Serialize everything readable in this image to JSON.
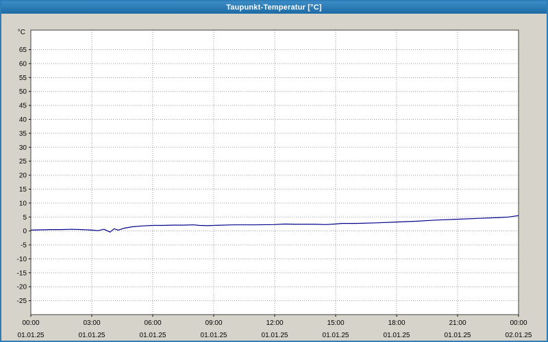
{
  "window": {
    "title": "Taupunkt-Temperatur [°C]"
  },
  "colors": {
    "window_border": "#2e7cb8",
    "titlebar_top": "#3c8cc6",
    "titlebar_bottom": "#1d6aa5",
    "outer_background": "#d6d3ca",
    "plot_background": "#ffffff",
    "plot_border": "#404040",
    "grid": "#9a9a9a",
    "line": "#00008b"
  },
  "chart_data": {
    "type": "line",
    "title": "Taupunkt-Temperatur [°C]",
    "ylabel_unit": "°C",
    "ylim": [
      -30,
      72
    ],
    "yticks": [
      65,
      60,
      55,
      50,
      45,
      40,
      35,
      30,
      25,
      20,
      15,
      10,
      5,
      0,
      -5,
      -10,
      -15,
      -20,
      -25
    ],
    "xlim_hours": [
      0,
      24
    ],
    "grid": true,
    "grid_color": "#9a9a9a",
    "xticks": [
      {
        "hour": 0,
        "time": "00:00",
        "date": "01.01.25"
      },
      {
        "hour": 3,
        "time": "03:00",
        "date": "01.01.25"
      },
      {
        "hour": 6,
        "time": "06:00",
        "date": "01.01.25"
      },
      {
        "hour": 9,
        "time": "09:00",
        "date": "01.01.25"
      },
      {
        "hour": 12,
        "time": "12:00",
        "date": "01.01.25"
      },
      {
        "hour": 15,
        "time": "15:00",
        "date": "01.01.25"
      },
      {
        "hour": 18,
        "time": "18:00",
        "date": "01.01.25"
      },
      {
        "hour": 21,
        "time": "21:00",
        "date": "01.01.25"
      },
      {
        "hour": 24,
        "time": "00:00",
        "date": "02.01.25"
      }
    ],
    "series": [
      {
        "name": "Taupunkt-Temperatur",
        "color": "#00008b",
        "x": [
          0,
          0.5,
          1,
          1.5,
          2,
          2.5,
          3,
          3.3,
          3.6,
          3.9,
          4.1,
          4.3,
          4.6,
          5,
          5.5,
          6,
          6.5,
          7,
          7.5,
          8,
          8.3,
          8.7,
          9,
          10,
          11,
          12,
          12.5,
          13,
          14,
          14.5,
          15,
          15.3,
          16,
          17,
          18,
          19,
          20,
          21,
          22,
          23,
          23.5,
          24
        ],
        "values": [
          0.3,
          0.4,
          0.5,
          0.5,
          0.6,
          0.5,
          0.3,
          0.1,
          0.6,
          -0.4,
          0.8,
          0.3,
          1.0,
          1.5,
          1.8,
          2.0,
          2.0,
          2.1,
          2.1,
          2.2,
          2.0,
          1.9,
          2.0,
          2.2,
          2.2,
          2.3,
          2.5,
          2.4,
          2.4,
          2.3,
          2.5,
          2.7,
          2.7,
          2.9,
          3.2,
          3.5,
          3.9,
          4.2,
          4.5,
          4.8,
          5.0,
          5.5
        ]
      }
    ]
  }
}
